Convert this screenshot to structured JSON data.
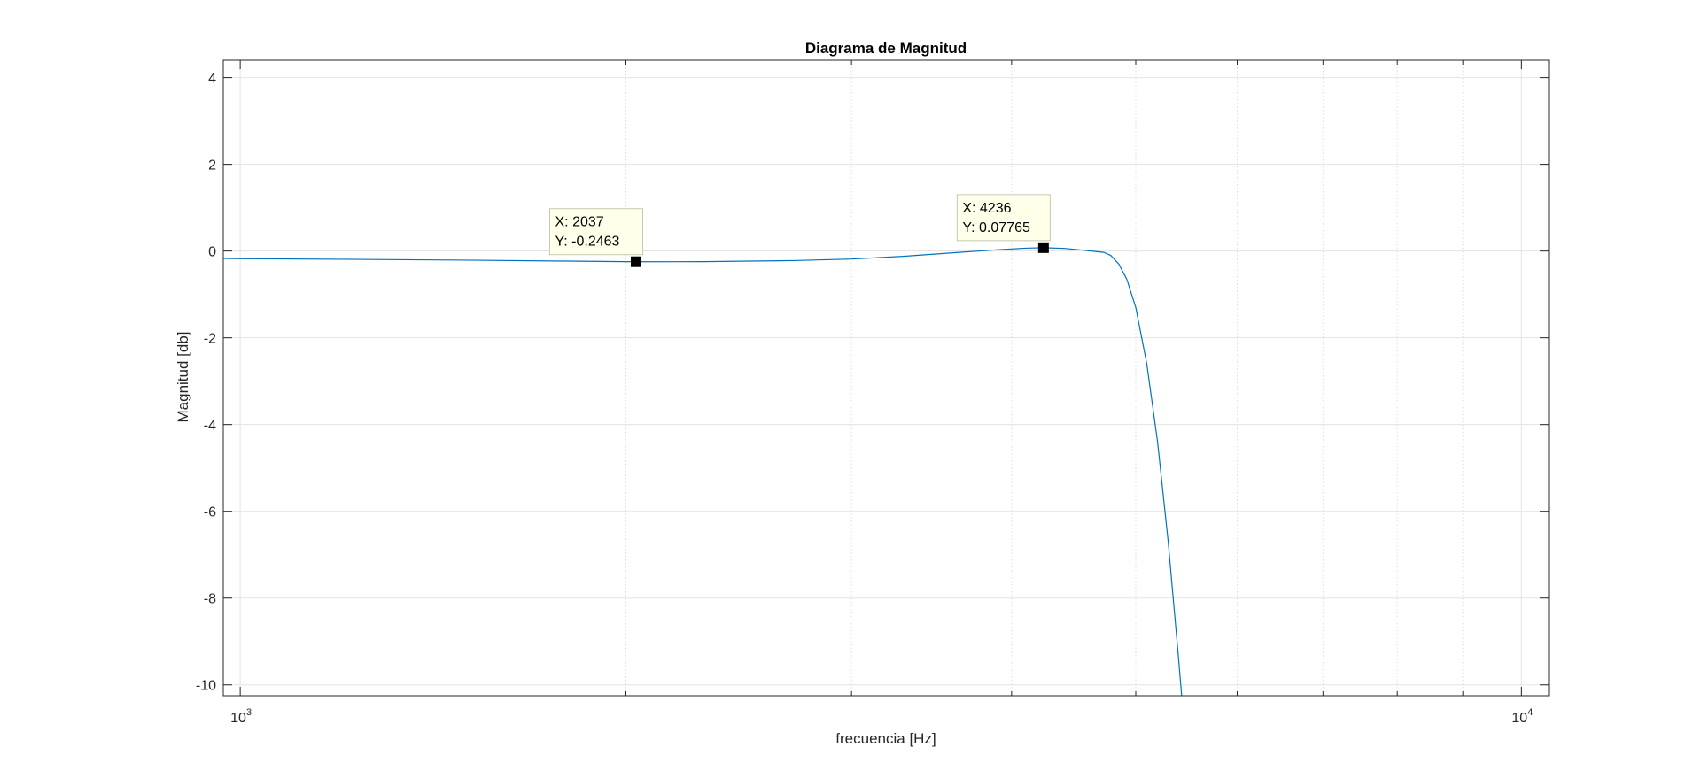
{
  "chart_data": {
    "type": "line",
    "title": "Diagrama de Magnitud",
    "xlabel": "frecuencia [Hz]",
    "ylabel": "Magnitud [db]",
    "xscale": "log",
    "xlim": [
      970,
      10500
    ],
    "ylim": [
      -10.25,
      4.4
    ],
    "grid": true,
    "minor_grid_x": true,
    "x_ticks": [
      {
        "value": 1000,
        "base": "10",
        "exp": "3"
      },
      {
        "value": 10000,
        "base": "10",
        "exp": "4"
      }
    ],
    "y_ticks": [
      {
        "value": 4,
        "label": "4"
      },
      {
        "value": 2,
        "label": "2"
      },
      {
        "value": 0,
        "label": "0"
      },
      {
        "value": -2,
        "label": "-2"
      },
      {
        "value": -4,
        "label": "-4"
      },
      {
        "value": -6,
        "label": "-6"
      },
      {
        "value": -8,
        "label": "-8"
      },
      {
        "value": -10,
        "label": "-10"
      }
    ],
    "series": [
      {
        "color": "#0072BD",
        "x": [
          970,
          1000,
          1200,
          1500,
          1800,
          2037,
          2300,
          2700,
          3000,
          3300,
          3600,
          3900,
          4100,
          4236,
          4400,
          4550,
          4650,
          4720,
          4780,
          4850,
          4920,
          5000,
          5100,
          5200,
          5300,
          5400,
          5430
        ],
        "y": [
          -0.17,
          -0.175,
          -0.19,
          -0.21,
          -0.232,
          -0.2463,
          -0.245,
          -0.22,
          -0.185,
          -0.12,
          -0.04,
          0.03,
          0.065,
          0.07765,
          0.06,
          0.02,
          -0.01,
          -0.03,
          -0.1,
          -0.3,
          -0.65,
          -1.3,
          -2.6,
          -4.4,
          -6.7,
          -9.4,
          -10.25
        ]
      }
    ],
    "datatips": [
      {
        "x": 4236,
        "y": 0.07765,
        "line1": "X: 4236",
        "line2": "Y: 0.07765"
      },
      {
        "x": 2037,
        "y": -0.2463,
        "line1": "X: 2037",
        "line2": "Y: -0.2463"
      }
    ],
    "colors": {
      "background": "#ffffff",
      "axes_edge": "#262626",
      "grid_major": "#e3e3e3",
      "grid_minor": "#dedede",
      "datatip_fill": "#ffffea",
      "datatip_edge": "#c8c8b4"
    }
  }
}
